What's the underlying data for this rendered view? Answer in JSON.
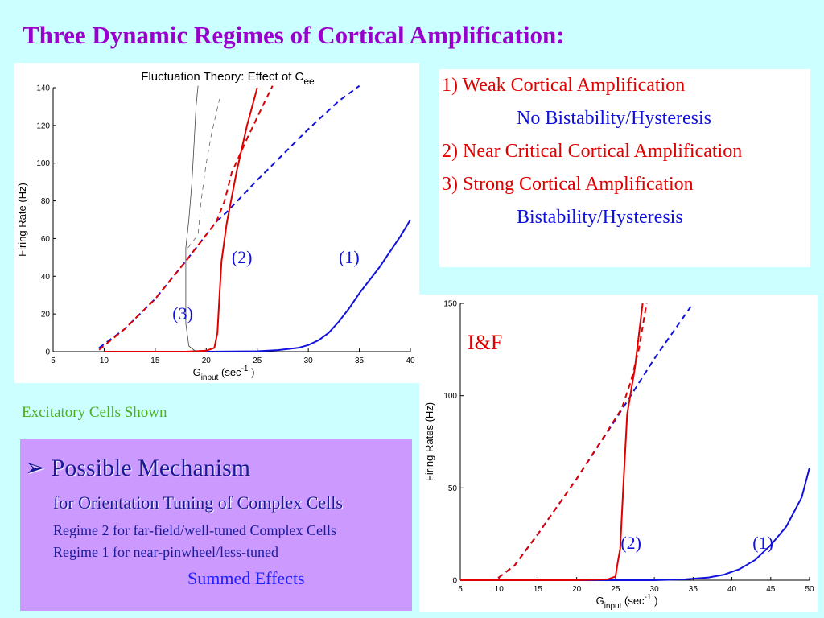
{
  "slide": {
    "title": "Three Dynamic Regimes of Cortical Amplification:",
    "regimes": {
      "line1": "1) Weak Cortical Amplification",
      "line1_sub": "No Bistability/Hysteresis",
      "line2": "2) Near Critical Cortical Amplification",
      "line3": "3) Strong Cortical Amplification",
      "line3_sub": "Bistability/Hysteresis"
    },
    "excitatory_note": "Excitatory Cells Shown",
    "mechanism": {
      "bullet": "➢",
      "heading": "Possible Mechanism",
      "subheading": "for Orientation Tuning of Complex Cells",
      "line1": "Regime 2 for far-field/well-tuned Complex Cells",
      "line2": "Regime 1 for near-pinwheel/less-tuned",
      "line3": "Summed Effects"
    },
    "colors": {
      "background": "#ccffff",
      "title": "#9900cc",
      "red": "#e00000",
      "blue": "#1111dd",
      "mechanism_bg": "#cc99ff",
      "note": "#4caf1f"
    }
  },
  "chart_data": [
    {
      "type": "line",
      "title": "Fluctuation Theory: Effect of C",
      "title_sub": "ee",
      "xlabel": "G",
      "xlabel_sub": "input",
      "xlabel_unit_pre": "(sec",
      "xlabel_unit_sup": "-1",
      "xlabel_unit_post": ")",
      "ylabel": "Firing Rate (Hz)",
      "xlim": [
        5,
        40
      ],
      "ylim": [
        0,
        140
      ],
      "xticks": [
        5,
        10,
        15,
        20,
        25,
        30,
        35,
        40
      ],
      "yticks": [
        0,
        20,
        40,
        60,
        80,
        100,
        120,
        140
      ],
      "annotations": [
        {
          "text": "(1)",
          "x": 34,
          "y": 50
        },
        {
          "text": "(2)",
          "x": 23.5,
          "y": 50
        },
        {
          "text": "(3)",
          "x": 17.7,
          "y": 20
        }
      ],
      "series": [
        {
          "color": "#1111dd",
          "dash": false,
          "width": 2,
          "points": [
            [
              10,
              0
            ],
            [
              15,
              0
            ],
            [
              20,
              0
            ],
            [
              25,
              0.2
            ],
            [
              27,
              0.8
            ],
            [
              29,
              2
            ],
            [
              30,
              3.5
            ],
            [
              31,
              6
            ],
            [
              32,
              10
            ],
            [
              33,
              16
            ],
            [
              34,
              23
            ],
            [
              35,
              31
            ],
            [
              36,
              38
            ],
            [
              37,
              45
            ],
            [
              38,
              53
            ],
            [
              39,
              61
            ],
            [
              40,
              70
            ]
          ]
        },
        {
          "color": "#1111dd",
          "dash": true,
          "width": 2,
          "points": [
            [
              9.5,
              2
            ],
            [
              12,
              12
            ],
            [
              15,
              28
            ],
            [
              18,
              48
            ],
            [
              20,
              62
            ],
            [
              21,
              69
            ],
            [
              22,
              74
            ],
            [
              25,
              91
            ],
            [
              30,
              118
            ],
            [
              33,
              133
            ],
            [
              35,
              141
            ]
          ]
        },
        {
          "color": "#e00000",
          "dash": false,
          "width": 2,
          "points": [
            [
              10,
              0
            ],
            [
              18,
              0
            ],
            [
              20,
              0.5
            ],
            [
              20.8,
              2
            ],
            [
              21.1,
              10
            ],
            [
              21.3,
              30
            ],
            [
              21.5,
              48
            ],
            [
              22,
              68
            ],
            [
              23,
              96
            ],
            [
              24,
              120
            ],
            [
              25,
              140
            ]
          ]
        },
        {
          "color": "#e00000",
          "dash": true,
          "width": 2,
          "points": [
            [
              9.5,
              1
            ],
            [
              12,
              12
            ],
            [
              15,
              28
            ],
            [
              18,
              48
            ],
            [
              20,
              62
            ],
            [
              21,
              69
            ],
            [
              21.8,
              80
            ],
            [
              22.5,
              95
            ],
            [
              24,
              113
            ],
            [
              25.5,
              130
            ],
            [
              26.5,
              141
            ]
          ]
        },
        {
          "color": "#444444",
          "dash": false,
          "width": 0.8,
          "points": [
            [
              19,
              0
            ],
            [
              18.3,
              3
            ],
            [
              18,
              15
            ],
            [
              18,
              35
            ],
            [
              18,
              55
            ],
            [
              18.3,
              70
            ],
            [
              18.6,
              90
            ],
            [
              18.8,
              110
            ],
            [
              19,
              130
            ],
            [
              19.2,
              141
            ]
          ]
        },
        {
          "color": "#666666",
          "dash": true,
          "width": 0.8,
          "points": [
            [
              18.2,
              55
            ],
            [
              19.2,
              62
            ],
            [
              19.5,
              80
            ],
            [
              20,
              100
            ],
            [
              20.5,
              115
            ],
            [
              21.3,
              134
            ]
          ]
        }
      ]
    },
    {
      "type": "line",
      "title": "I&F",
      "xlabel": "G",
      "xlabel_sub": "input",
      "xlabel_unit_pre": "(sec",
      "xlabel_unit_sup": "-1",
      "xlabel_unit_post": ")",
      "ylabel": "Firing Rates (Hz)",
      "xlim": [
        5,
        50
      ],
      "ylim": [
        0,
        150
      ],
      "xticks": [
        5,
        10,
        15,
        20,
        25,
        30,
        35,
        40,
        45,
        50
      ],
      "yticks": [
        0,
        50,
        100,
        150
      ],
      "annotations": [
        {
          "text": "(1)",
          "x": 44,
          "y": 20
        },
        {
          "text": "(2)",
          "x": 27,
          "y": 20
        }
      ],
      "series": [
        {
          "color": "#1111dd",
          "dash": false,
          "width": 2,
          "points": [
            [
              5,
              0
            ],
            [
              20,
              0
            ],
            [
              30,
              0
            ],
            [
              34,
              0.5
            ],
            [
              37,
              1.5
            ],
            [
              39,
              3
            ],
            [
              41,
              6
            ],
            [
              43,
              11
            ],
            [
              45,
              19
            ],
            [
              47,
              29
            ],
            [
              49,
              45
            ],
            [
              50,
              61
            ]
          ]
        },
        {
          "color": "#1111dd",
          "dash": true,
          "width": 2,
          "points": [
            [
              5,
              0
            ],
            [
              9.5,
              0
            ],
            [
              12,
              8
            ],
            [
              15,
              25
            ],
            [
              20,
              55
            ],
            [
              25,
              87
            ],
            [
              30,
              120
            ],
            [
              35,
              150
            ]
          ]
        },
        {
          "color": "#e00000",
          "dash": false,
          "width": 2,
          "points": [
            [
              5,
              0
            ],
            [
              20,
              0
            ],
            [
              24,
              0.5
            ],
            [
              25,
              2
            ],
            [
              25.3,
              10
            ],
            [
              25.6,
              17
            ],
            [
              26,
              50
            ],
            [
              26.5,
              90
            ],
            [
              27.5,
              115
            ],
            [
              28.5,
              150
            ]
          ]
        },
        {
          "color": "#e00000",
          "dash": true,
          "width": 2,
          "points": [
            [
              5,
              0
            ],
            [
              9.5,
              0
            ],
            [
              12,
              8
            ],
            [
              15,
              25
            ],
            [
              20,
              55
            ],
            [
              24,
              81
            ],
            [
              25.8,
              93
            ],
            [
              27,
              108
            ],
            [
              28,
              125
            ],
            [
              29,
              150
            ]
          ]
        }
      ]
    }
  ]
}
